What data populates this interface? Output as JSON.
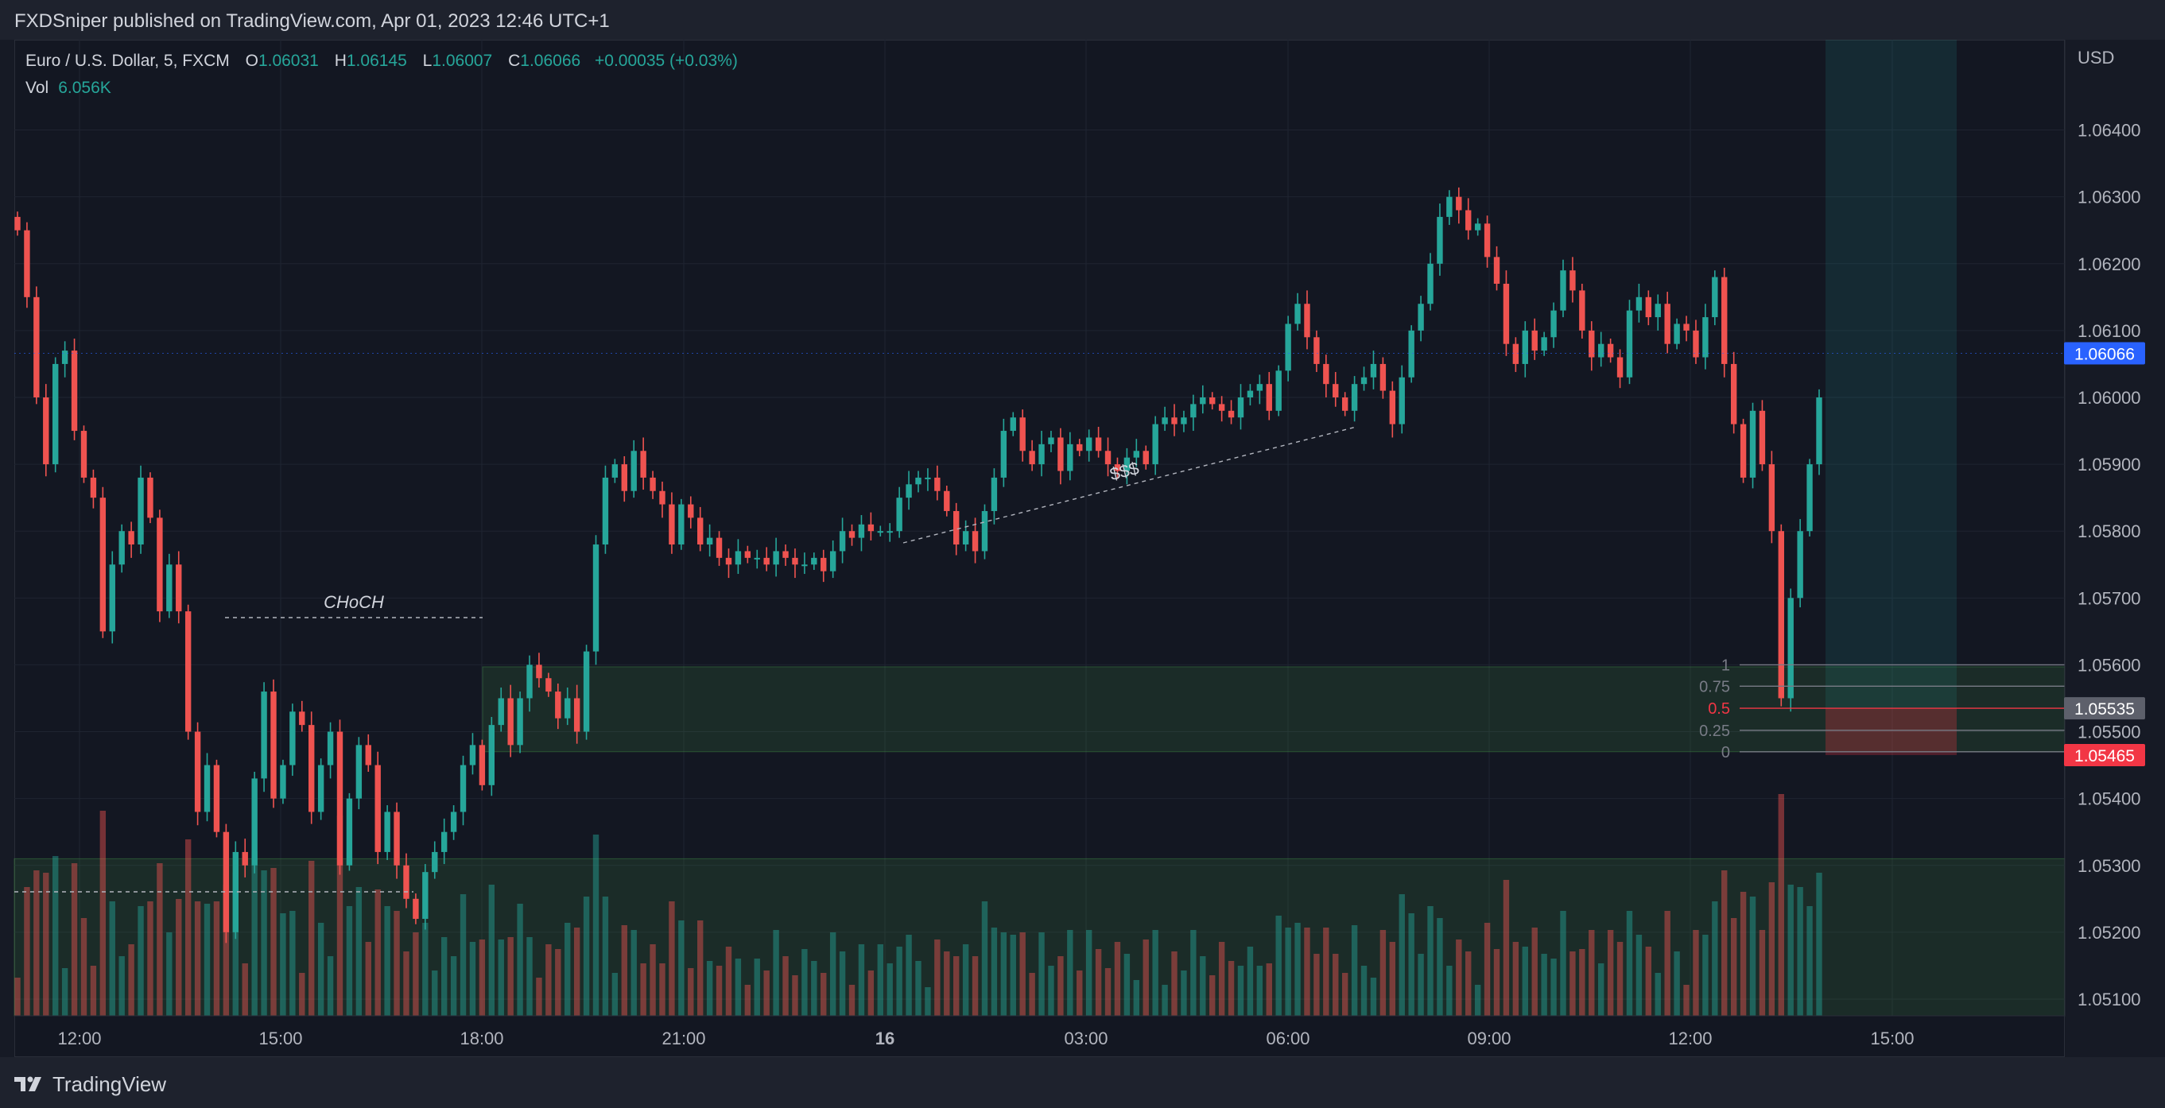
{
  "header": {
    "published_text": "FXDSniper published on TradingView.com, Apr 01, 2023 12:46 UTC+1"
  },
  "legend": {
    "symbol": "Euro / U.S. Dollar, 5, FXCM",
    "open_label": "O",
    "open": "1.06031",
    "high_label": "H",
    "high": "1.06145",
    "low_label": "L",
    "low": "1.06007",
    "close_label": "C",
    "close": "1.06066",
    "change": "+0.00035 (+0.03%)",
    "vol_label": "Vol",
    "vol": "6.056K"
  },
  "footer": {
    "brand": "TradingView"
  },
  "chart_data": {
    "type": "candlestick",
    "currency_label": "USD",
    "y_ticks": [
      "1.06400",
      "1.06300",
      "1.06200",
      "1.06100",
      "1.06000",
      "1.05900",
      "1.05800",
      "1.05700",
      "1.05600",
      "1.05500",
      "1.05400",
      "1.05300",
      "1.05200",
      "1.05100"
    ],
    "ylim": [
      1.05075,
      1.06535
    ],
    "x_ticks": [
      "12:00",
      "15:00",
      "18:00",
      "21:00",
      "16",
      "03:00",
      "06:00",
      "09:00",
      "12:00",
      "15:00"
    ],
    "price_labels": [
      {
        "text": "1.06066",
        "value": 1.06066,
        "color": "#2962ff"
      },
      {
        "text": "1.05535",
        "value": 1.05535,
        "color": "#5d606b"
      },
      {
        "text": "1.05465",
        "value": 1.05465,
        "color": "#f23645"
      }
    ],
    "annotations": [
      "CHoCH",
      "$$$"
    ],
    "fib_levels": [
      {
        "label": "1",
        "value": 1.056
      },
      {
        "label": "0.75",
        "value": 1.05568
      },
      {
        "label": "0.5",
        "value": 1.05535
      },
      {
        "label": "0.25",
        "value": 1.05502
      },
      {
        "label": "0",
        "value": 1.0547
      }
    ],
    "zones": [
      {
        "name": "demand-zone-upper",
        "from": 1.0547,
        "to": 1.05597
      },
      {
        "name": "demand-zone-lower",
        "from": 1.05075,
        "to": 1.0531
      }
    ],
    "trade_box": {
      "entry": 1.05535,
      "stop": 1.05465,
      "target": 1.06535
    },
    "candles_close": [
      1.0625,
      1.0615,
      1.06,
      1.059,
      1.0605,
      1.0607,
      1.0595,
      1.0588,
      1.0585,
      1.0565,
      1.0575,
      1.058,
      1.0578,
      1.0588,
      1.0582,
      1.0568,
      1.0575,
      1.0568,
      1.055,
      1.0538,
      1.0545,
      1.0535,
      1.052,
      1.0532,
      1.053,
      1.0543,
      1.0556,
      1.054,
      1.0545,
      1.0553,
      1.0551,
      1.0538,
      1.0545,
      1.055,
      1.053,
      1.054,
      1.0548,
      1.0545,
      1.0532,
      1.0538,
      1.053,
      1.0525,
      1.0522,
      1.0529,
      1.0532,
      1.0535,
      1.0538,
      1.0545,
      1.0548,
      1.0542,
      1.0551,
      1.0555,
      1.0548,
      1.0555,
      1.056,
      1.0558,
      1.0556,
      1.0552,
      1.0555,
      1.055,
      1.0562,
      1.0578,
      1.0588,
      1.059,
      1.0586,
      1.0592,
      1.0588,
      1.0586,
      1.0584,
      1.0578,
      1.0584,
      1.0582,
      1.0578,
      1.0579,
      1.0576,
      1.0575,
      1.0577,
      1.0576,
      1.0576,
      1.0575,
      1.0577,
      1.0576,
      1.0575,
      1.0575,
      1.0576,
      1.0574,
      1.0577,
      1.058,
      1.0579,
      1.0581,
      1.058,
      1.058,
      1.058,
      1.0585,
      1.0587,
      1.0588,
      1.0588,
      1.0586,
      1.0583,
      1.0578,
      1.058,
      1.0577,
      1.0583,
      1.0588,
      1.0595,
      1.0597,
      1.0592,
      1.059,
      1.0593,
      1.0594,
      1.0589,
      1.0593,
      1.0592,
      1.0594,
      1.0592,
      1.059,
      1.0589,
      1.0591,
      1.0592,
      1.059,
      1.0596,
      1.0597,
      1.0596,
      1.0597,
      1.0599,
      1.06,
      1.0599,
      1.0598,
      1.0597,
      1.06,
      1.0601,
      1.0602,
      1.0598,
      1.0604,
      1.0611,
      1.0614,
      1.0609,
      1.0605,
      1.0602,
      1.06,
      1.0598,
      1.0602,
      1.0603,
      1.0605,
      1.0601,
      1.0596,
      1.0603,
      1.061,
      1.0614,
      1.062,
      1.0627,
      1.063,
      1.0628,
      1.0625,
      1.0626,
      1.0621,
      1.0617,
      1.0608,
      1.0605,
      1.061,
      1.0607,
      1.0609,
      1.0613,
      1.0619,
      1.0616,
      1.061,
      1.0606,
      1.0608,
      1.0606,
      1.0603,
      1.0613,
      1.0615,
      1.0612,
      1.0614,
      1.0608,
      1.0611,
      1.061,
      1.0606,
      1.0612,
      1.0618,
      1.0605,
      1.0596,
      1.0588,
      1.0598,
      1.059,
      1.058,
      1.0555,
      1.057,
      1.058,
      1.059,
      1.06
    ]
  }
}
